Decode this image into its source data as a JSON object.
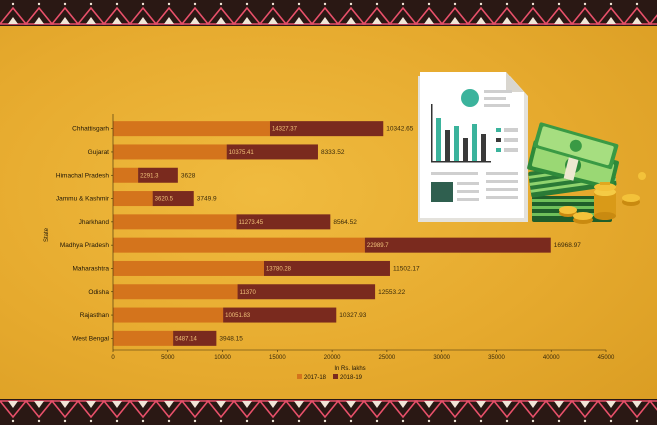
{
  "chart_data": {
    "type": "bar",
    "orientation": "horizontal",
    "stacked": true,
    "categories": [
      "Chhattisgarh",
      "Gujarat",
      "Himachal Pradesh",
      "Jammu & Kashmir",
      "Jharkhand",
      "Madhya Pradesh",
      "Maharashtra",
      "Odisha",
      "Rajasthan",
      "West Bengal"
    ],
    "series": [
      {
        "name": "2017-18",
        "color": "#d4741c",
        "values": [
          14327.37,
          10375.41,
          2291.3,
          3620.5,
          11273.45,
          22989.7,
          13780.28,
          11370,
          10051.83,
          5487.14
        ]
      },
      {
        "name": "2018-19",
        "color": "#7a2a1e",
        "values": [
          10342.65,
          8333.52,
          3628,
          3749.9,
          8564.52,
          16968.97,
          11502.17,
          12553.22,
          10327.93,
          3948.15
        ]
      }
    ],
    "data_labels_2017_18": [
      "14327.37",
      "10375.41",
      "2291.3",
      "3620.5",
      "11273.45",
      "22989.7",
      "13780.28",
      "11370",
      "10051.83",
      "5487.14"
    ],
    "data_labels_2018_19": [
      "10342.65",
      "8333.52",
      "3628",
      "3749.9",
      "8564.52",
      "16968.97",
      "11502.17",
      "12553.22",
      "10327.93",
      "3948.15"
    ],
    "xlabel": "In Rs. lakhs",
    "ylabel": "State",
    "xlim": [
      0,
      45000
    ],
    "xticks": [
      "0",
      "5000",
      "10000",
      "15000",
      "20000",
      "25000",
      "30000",
      "35000",
      "40000",
      "45000"
    ],
    "grid": false,
    "legend_position": "bottom"
  },
  "illustration": {
    "icons": [
      "document-chart-icon",
      "cash-stack-icon",
      "coins-icon"
    ]
  },
  "colors": {
    "background": "#e6aa2e",
    "border_band": "#2a1814",
    "border_accent": "#e8506a"
  }
}
